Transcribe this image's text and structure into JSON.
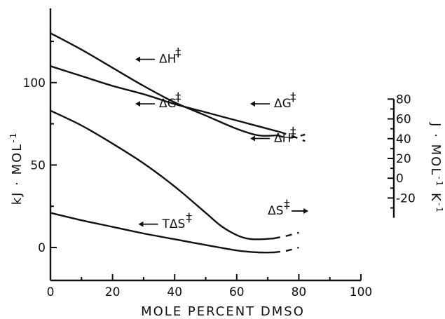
{
  "chart_data": {
    "type": "line",
    "title": "",
    "xlabel": "MOLE PERCENT DMSO",
    "ylabel": "kJ · MOL",
    "ylabel_sup": "-1",
    "y2label": "J · MOL",
    "y2label_sup1": "-1",
    "y2label_mid": " K",
    "y2label_sup2": "-1",
    "xlim": [
      0,
      100
    ],
    "ylim": [
      -20,
      145
    ],
    "y2lim": [
      -40,
      80
    ],
    "xticks": [
      0,
      20,
      40,
      60,
      80,
      100
    ],
    "xtick_labels": [
      "0",
      "20",
      "40",
      "60",
      "80",
      "100"
    ],
    "yticks": [
      0,
      50,
      100
    ],
    "ytick_labels": [
      "0",
      "50",
      "100"
    ],
    "y2ticks": [
      -20,
      0,
      20,
      40,
      60,
      80
    ],
    "y2tick_labels": [
      "-20",
      "0",
      "20",
      "40",
      "60",
      "80"
    ],
    "grid": false,
    "series": [
      {
        "id": "dH-upper",
        "axis": "left",
        "x": [
          0,
          10,
          20,
          30,
          40,
          50,
          60,
          67,
          73
        ],
        "y": [
          130,
          120,
          109,
          98,
          88,
          80,
          72,
          68,
          68
        ],
        "dash_x": [
          73,
          77,
          82
        ],
        "dash_y": [
          68,
          66.5,
          68.5
        ]
      },
      {
        "id": "dG",
        "axis": "left",
        "x": [
          0,
          10,
          20,
          30,
          40,
          50,
          60,
          70,
          74
        ],
        "y": [
          110,
          104,
          98,
          93,
          87,
          82,
          77,
          72,
          70
        ],
        "dash_x": [
          74,
          78,
          82
        ],
        "dash_y": [
          70,
          67.5,
          64.5
        ]
      },
      {
        "id": "dS",
        "axis": "left",
        "x": [
          0,
          10,
          20,
          30,
          40,
          50,
          55,
          60,
          64,
          68,
          72
        ],
        "y": [
          83,
          74,
          63,
          51,
          37,
          21,
          13,
          7.5,
          5.2,
          5,
          5.5
        ],
        "dash_x": [
          72,
          76,
          80
        ],
        "dash_y": [
          5.5,
          7,
          9
        ]
      },
      {
        "id": "TdS",
        "axis": "left",
        "x": [
          0,
          10,
          20,
          30,
          40,
          50,
          60,
          67,
          72
        ],
        "y": [
          21,
          16.5,
          12.5,
          8.5,
          5,
          1.5,
          -1.8,
          -3,
          -3
        ],
        "dash_x": [
          72,
          76,
          80
        ],
        "dash_y": [
          -3,
          -2,
          0
        ]
      }
    ],
    "annotations": [
      {
        "id": "dH-top",
        "text": "ΔH",
        "sup": "‡",
        "arrow": "left",
        "x": 35,
        "y": 112
      },
      {
        "id": "dG-left",
        "text": "ΔG",
        "sup": "‡",
        "arrow": "left",
        "x": 35,
        "y": 85
      },
      {
        "id": "dG-right",
        "text": "ΔG",
        "sup": "‡",
        "arrow": "left",
        "x": 72,
        "y": 85
      },
      {
        "id": "dH-right",
        "text": "ΔH",
        "sup": "‡",
        "arrow": "left",
        "x": 72,
        "y": 64
      },
      {
        "id": "TdS-label",
        "text": "TΔS",
        "sup": "‡",
        "arrow": "left",
        "x": 36,
        "y": 12
      },
      {
        "id": "dS-label",
        "text": "ΔS",
        "sup": "‡",
        "arrow": "right",
        "x": 70,
        "y": 20
      }
    ]
  }
}
